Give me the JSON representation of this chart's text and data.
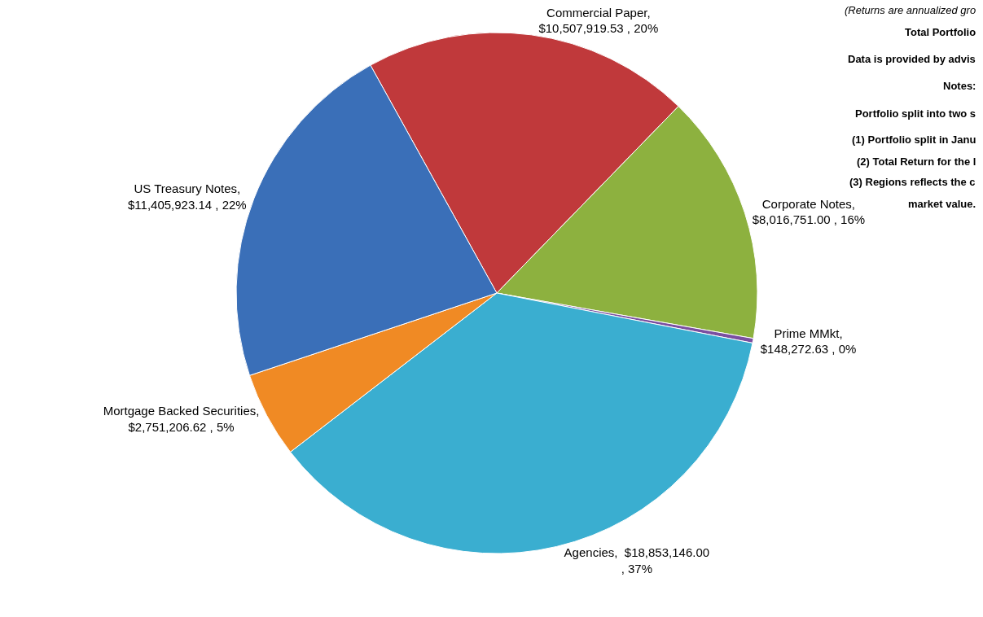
{
  "chart_data": {
    "type": "pie",
    "categories": [
      "Commercial Paper",
      "Corporate Notes",
      "Prime MMkt",
      "Agencies",
      "Mortgage Backed Securities",
      "US Treasury Notes"
    ],
    "values": [
      10507919.53,
      8016751.0,
      148272.63,
      18853146.0,
      2751206.62,
      11405923.14
    ],
    "value_labels": [
      ",\n$10,507,919.53 , 20%",
      ",\n$8,016,751.00 , 16%",
      ",\n$148,272.63 , 0%",
      ",  $18,853,146.00\n, 37%",
      ",\n$2,751,206.62 , 5%",
      ",\n$11,405,923.14 , 22%"
    ],
    "colors": [
      "#c0393b",
      "#8db13f",
      "#7a4fa0",
      "#3aaed0",
      "#f08a24",
      "#3a6fb8"
    ],
    "annotations": [
      "(Returns are annualized gro",
      "Total Portfolio",
      "Data is provided by advis",
      "Notes:",
      "Portfolio split into two s",
      "(1) Portfolio split in Janu",
      "(2) Total Return for the l",
      "(3) Regions reflects the c",
      "market value."
    ],
    "legend": false
  }
}
